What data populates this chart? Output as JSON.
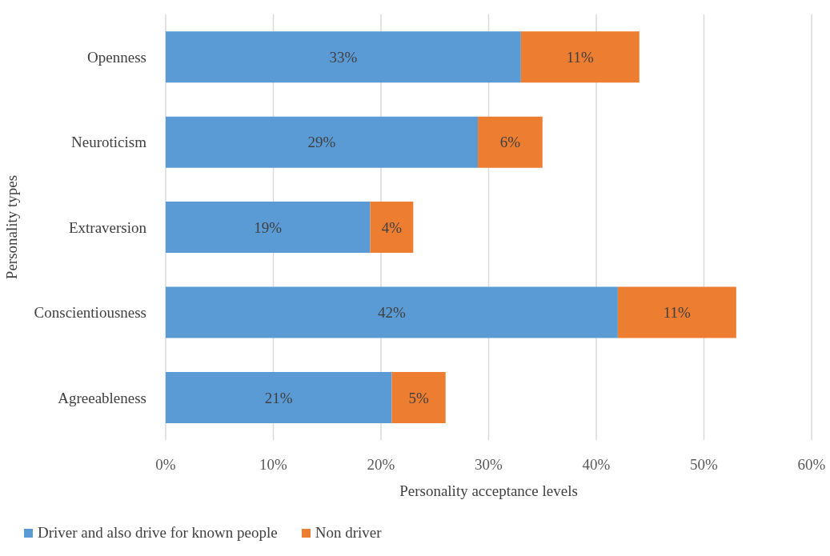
{
  "chart_data": {
    "type": "bar",
    "orientation": "horizontal",
    "stacked": true,
    "xlabel": "Personality acceptance levels",
    "ylabel": "Personality types",
    "categories": [
      "Openness",
      "Neuroticism",
      "Extraversion",
      "Conscientiousness",
      "Agreeableness"
    ],
    "series": [
      {
        "name": "Driver and also drive for known people",
        "color": "#5b9bd5",
        "values": [
          33,
          29,
          19,
          42,
          21
        ],
        "value_labels": [
          "33%",
          "29%",
          "19%",
          "42%",
          "21%"
        ]
      },
      {
        "name": "Non driver",
        "color": "#ed7d31",
        "values": [
          11,
          6,
          4,
          11,
          5
        ],
        "value_labels": [
          "11%",
          "6%",
          "4%",
          "11%",
          "5%"
        ]
      }
    ],
    "xlim": [
      0,
      60
    ],
    "xticks": [
      {
        "value": 0,
        "label": "0%"
      },
      {
        "value": 10,
        "label": "10%"
      },
      {
        "value": 20,
        "label": "20%"
      },
      {
        "value": 30,
        "label": "30%"
      },
      {
        "value": 40,
        "label": "40%"
      },
      {
        "value": 50,
        "label": "50%"
      },
      {
        "value": 60,
        "label": "60%"
      }
    ],
    "grid": "x",
    "legend": "bottom left"
  }
}
